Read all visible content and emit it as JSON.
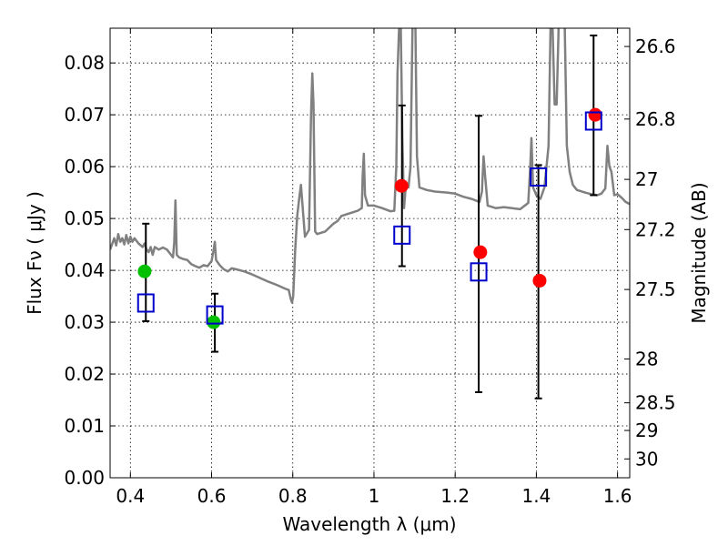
{
  "chart_data": {
    "type": "scatter",
    "x_axis": {
      "label": "Wavelength  λ (μm)",
      "range": [
        0.35,
        1.63
      ],
      "ticks": [
        {
          "value": 0.4,
          "label": "0.4"
        },
        {
          "value": 0.6,
          "label": "0.6"
        },
        {
          "value": 0.8,
          "label": "0.8"
        },
        {
          "value": 1.0,
          "label": "1"
        },
        {
          "value": 1.2,
          "label": "1.2"
        },
        {
          "value": 1.4,
          "label": "1.4"
        },
        {
          "value": 1.6,
          "label": "1.6"
        }
      ]
    },
    "y_axis": {
      "label": "Flux  Fν  ( μJy )",
      "range": [
        0.0,
        0.0867
      ],
      "ticks": [
        {
          "value": 0.0,
          "label": "0.00"
        },
        {
          "value": 0.01,
          "label": "0.01"
        },
        {
          "value": 0.02,
          "label": "0.02"
        },
        {
          "value": 0.03,
          "label": "0.03"
        },
        {
          "value": 0.04,
          "label": "0.04"
        },
        {
          "value": 0.05,
          "label": "0.05"
        },
        {
          "value": 0.06,
          "label": "0.06"
        },
        {
          "value": 0.07,
          "label": "0.07"
        },
        {
          "value": 0.08,
          "label": "0.08"
        }
      ]
    },
    "y2_axis": {
      "label": "Magnitude (AB)",
      "ticks": [
        {
          "value": 26.6,
          "label": "26.6"
        },
        {
          "value": 26.8,
          "label": "26.8"
        },
        {
          "value": 27.0,
          "label": "27"
        },
        {
          "value": 27.2,
          "label": "27.2"
        },
        {
          "value": 27.5,
          "label": "27.5"
        },
        {
          "value": 28.0,
          "label": "28"
        },
        {
          "value": 28.5,
          "label": "28.5"
        },
        {
          "value": 29.0,
          "label": "29"
        },
        {
          "value": 30.0,
          "label": "30"
        }
      ]
    },
    "grid": true,
    "series": [
      {
        "kind": "line",
        "color": "#808080",
        "points": [
          [
            0.35,
            0.044
          ],
          [
            0.36,
            0.0462
          ],
          [
            0.365,
            0.0448
          ],
          [
            0.37,
            0.047
          ],
          [
            0.375,
            0.0455
          ],
          [
            0.38,
            0.0462
          ],
          [
            0.385,
            0.045
          ],
          [
            0.39,
            0.0468
          ],
          [
            0.395,
            0.0452
          ],
          [
            0.4,
            0.0465
          ],
          [
            0.405,
            0.0455
          ],
          [
            0.41,
            0.0462
          ],
          [
            0.42,
            0.0452
          ],
          [
            0.43,
            0.0445
          ],
          [
            0.435,
            0.0452
          ],
          [
            0.44,
            0.044
          ],
          [
            0.445,
            0.0435
          ],
          [
            0.45,
            0.0445
          ],
          [
            0.455,
            0.043
          ],
          [
            0.46,
            0.0445
          ],
          [
            0.47,
            0.044
          ],
          [
            0.48,
            0.0444
          ],
          [
            0.49,
            0.044
          ],
          [
            0.5,
            0.043
          ],
          [
            0.505,
            0.0425
          ],
          [
            0.508,
            0.0455
          ],
          [
            0.511,
            0.0535
          ],
          [
            0.514,
            0.043
          ],
          [
            0.52,
            0.0425
          ],
          [
            0.53,
            0.0422
          ],
          [
            0.54,
            0.042
          ],
          [
            0.55,
            0.0412
          ],
          [
            0.56,
            0.0408
          ],
          [
            0.57,
            0.0405
          ],
          [
            0.58,
            0.041
          ],
          [
            0.59,
            0.0408
          ],
          [
            0.6,
            0.0418
          ],
          [
            0.605,
            0.044
          ],
          [
            0.608,
            0.0455
          ],
          [
            0.611,
            0.042
          ],
          [
            0.62,
            0.041
          ],
          [
            0.63,
            0.0402
          ],
          [
            0.64,
            0.0398
          ],
          [
            0.65,
            0.0404
          ],
          [
            0.66,
            0.0402
          ],
          [
            0.68,
            0.0398
          ],
          [
            0.7,
            0.0392
          ],
          [
            0.72,
            0.0385
          ],
          [
            0.74,
            0.0378
          ],
          [
            0.76,
            0.0372
          ],
          [
            0.78,
            0.0365
          ],
          [
            0.79,
            0.0362
          ],
          [
            0.795,
            0.0345
          ],
          [
            0.798,
            0.0338
          ],
          [
            0.801,
            0.035
          ],
          [
            0.806,
            0.044
          ],
          [
            0.811,
            0.0505
          ],
          [
            0.816,
            0.054
          ],
          [
            0.82,
            0.0565
          ],
          [
            0.83,
            0.0465
          ],
          [
            0.84,
            0.0478
          ],
          [
            0.845,
            0.07
          ],
          [
            0.848,
            0.078
          ],
          [
            0.851,
            0.072
          ],
          [
            0.855,
            0.0475
          ],
          [
            0.86,
            0.047
          ],
          [
            0.88,
            0.0475
          ],
          [
            0.9,
            0.049
          ],
          [
            0.91,
            0.0495
          ],
          [
            0.92,
            0.0505
          ],
          [
            0.94,
            0.051
          ],
          [
            0.96,
            0.0515
          ],
          [
            0.97,
            0.052
          ],
          [
            0.972,
            0.058
          ],
          [
            0.975,
            0.0625
          ],
          [
            0.978,
            0.0545
          ],
          [
            0.985,
            0.0525
          ],
          [
            1.0,
            0.0525
          ],
          [
            1.02,
            0.052
          ],
          [
            1.04,
            0.0514
          ],
          [
            1.05,
            0.0515
          ],
          [
            1.055,
            0.06
          ],
          [
            1.058,
            0.078
          ],
          [
            1.062,
            0.087
          ],
          [
            1.066,
            0.087
          ],
          [
            1.07,
            0.065
          ],
          [
            1.074,
            0.052
          ],
          [
            1.078,
            0.056
          ],
          [
            1.085,
            0.056
          ],
          [
            1.09,
            0.06
          ],
          [
            1.095,
            0.087
          ],
          [
            1.102,
            0.087
          ],
          [
            1.106,
            0.062
          ],
          [
            1.112,
            0.056
          ],
          [
            1.13,
            0.0555
          ],
          [
            1.15,
            0.0552
          ],
          [
            1.18,
            0.055
          ],
          [
            1.2,
            0.0548
          ],
          [
            1.22,
            0.0542
          ],
          [
            1.24,
            0.0538
          ],
          [
            1.26,
            0.0532
          ],
          [
            1.266,
            0.0552
          ],
          [
            1.27,
            0.062
          ],
          [
            1.274,
            0.058
          ],
          [
            1.28,
            0.0525
          ],
          [
            1.3,
            0.052
          ],
          [
            1.32,
            0.0522
          ],
          [
            1.34,
            0.052
          ],
          [
            1.36,
            0.0518
          ],
          [
            1.38,
            0.053
          ],
          [
            1.385,
            0.06
          ],
          [
            1.388,
            0.0655
          ],
          [
            1.392,
            0.056
          ],
          [
            1.4,
            0.0545
          ],
          [
            1.41,
            0.0538
          ],
          [
            1.42,
            0.056
          ],
          [
            1.43,
            0.064
          ],
          [
            1.435,
            0.087
          ],
          [
            1.44,
            0.087
          ],
          [
            1.445,
            0.072
          ],
          [
            1.45,
            0.072
          ],
          [
            1.455,
            0.087
          ],
          [
            1.47,
            0.087
          ],
          [
            1.475,
            0.064
          ],
          [
            1.482,
            0.059
          ],
          [
            1.49,
            0.0565
          ],
          [
            1.5,
            0.0555
          ],
          [
            1.52,
            0.055
          ],
          [
            1.54,
            0.0546
          ],
          [
            1.55,
            0.0545
          ],
          [
            1.56,
            0.0548
          ],
          [
            1.57,
            0.0558
          ],
          [
            1.575,
            0.064
          ],
          [
            1.58,
            0.06
          ],
          [
            1.585,
            0.059
          ],
          [
            1.592,
            0.0545
          ],
          [
            1.6,
            0.0547
          ],
          [
            1.61,
            0.054
          ],
          [
            1.62,
            0.0532
          ],
          [
            1.63,
            0.0528
          ]
        ]
      },
      {
        "kind": "markers",
        "marker": "circle",
        "color": "#00c000",
        "points": [
          {
            "x": 0.435,
            "y": 0.0398
          },
          {
            "x": 0.605,
            "y": 0.03
          }
        ]
      },
      {
        "kind": "markers",
        "marker": "circle",
        "color": "#ff0000",
        "points": [
          {
            "x": 1.068,
            "y": 0.0563
          },
          {
            "x": 1.262,
            "y": 0.0435
          },
          {
            "x": 1.408,
            "y": 0.038
          },
          {
            "x": 1.545,
            "y": 0.07
          }
        ]
      },
      {
        "kind": "markers",
        "marker": "open-square",
        "color": "#0000cc",
        "points": [
          {
            "x": 0.438,
            "y": 0.0337,
            "err_low": 0.0302,
            "err_high": 0.049
          },
          {
            "x": 0.608,
            "y": 0.0314,
            "err_low": 0.0243,
            "err_high": 0.0355
          },
          {
            "x": 1.069,
            "y": 0.0468,
            "err_low": 0.0408,
            "err_high": 0.0718
          },
          {
            "x": 1.258,
            "y": 0.0397,
            "err_low": 0.0165,
            "err_high": 0.0698
          },
          {
            "x": 1.405,
            "y": 0.058,
            "err_low": 0.0153,
            "err_high": 0.0603
          },
          {
            "x": 1.541,
            "y": 0.0688,
            "err_low": 0.0545,
            "err_high": 0.0853
          }
        ]
      }
    ]
  }
}
